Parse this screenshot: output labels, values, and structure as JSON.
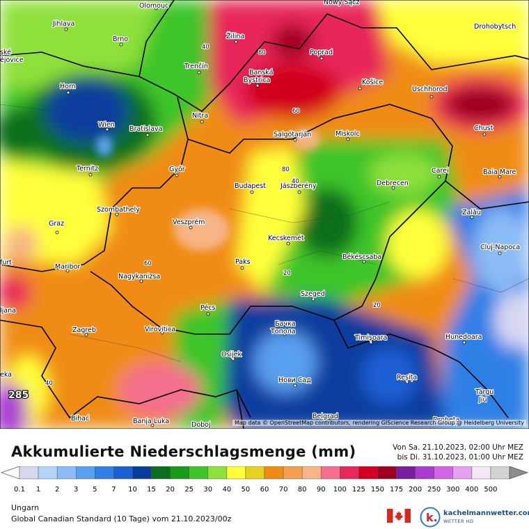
{
  "header": {
    "title": "Akkumulierte Niederschlagsmenge (mm)",
    "period_from": "Von Sa. 21.10.2023, 02:00 Uhr MEZ",
    "period_to": "bis Di. 31.10.2023, 01:00 Uhr MEZ"
  },
  "footer": {
    "region": "Ungarn",
    "model": "Global Canadian Standard (10 Tage) vom  21.10.2023/00z",
    "brand": "kachelmannwetter.com",
    "brand_sub": "WETTER HD"
  },
  "map": {
    "attribution": "Map data © OpenStreetMap contributors, rendering GIScience Research Group @ Heidelberg University",
    "cities": [
      {
        "name": "Olomouc"
      },
      {
        "name": "Nowy Sącz"
      },
      {
        "name": "Jihlava"
      },
      {
        "name": "Drohobytsch"
      },
      {
        "name": "Brno"
      },
      {
        "name": "Žilina"
      },
      {
        "name": "Poprad"
      },
      {
        "name": "ské"
      },
      {
        "name": "ějovice"
      },
      {
        "name": "Trenčín"
      },
      {
        "name": "Banská"
      },
      {
        "name": "Bystrica"
      },
      {
        "name": "Košice"
      },
      {
        "name": "Uschhorod"
      },
      {
        "name": "Horn"
      },
      {
        "name": "Nitra"
      },
      {
        "name": "Wien"
      },
      {
        "name": "Bratislava"
      },
      {
        "name": "Salgótarján"
      },
      {
        "name": "Miskolc"
      },
      {
        "name": "Chust"
      },
      {
        "name": "Ternitz"
      },
      {
        "name": "Győr"
      },
      {
        "name": "Carei"
      },
      {
        "name": "Baia Mare"
      },
      {
        "name": "Budapest"
      },
      {
        "name": "Jászberény"
      },
      {
        "name": "Debrecen"
      },
      {
        "name": "Szombathely"
      },
      {
        "name": "Zalău"
      },
      {
        "name": "Graz"
      },
      {
        "name": "Veszprém"
      },
      {
        "name": "Kecskemét"
      },
      {
        "name": "Cluj-Napoca"
      },
      {
        "name": "furt"
      },
      {
        "name": "Békéscsaba"
      },
      {
        "name": "Maribor"
      },
      {
        "name": "Paks"
      },
      {
        "name": "Nagykanizsa"
      },
      {
        "name": "Szeged"
      },
      {
        "name": "ljana"
      },
      {
        "name": "Pécs"
      },
      {
        "name": "Бачка"
      },
      {
        "name": "Топола"
      },
      {
        "name": "Zagreb"
      },
      {
        "name": "Virovitica"
      },
      {
        "name": "Timișoara"
      },
      {
        "name": "Hunedoara"
      },
      {
        "name": "Osijek"
      },
      {
        "name": "eka"
      },
      {
        "name": "Нови Сад"
      },
      {
        "name": "Reșița"
      },
      {
        "name": "Târgu"
      },
      {
        "name": "Jiu"
      },
      {
        "name": "Bihać"
      },
      {
        "name": "Belgrad"
      },
      {
        "name": "Banja Luka"
      },
      {
        "name": "Doboj"
      },
      {
        "name": "Drobeta"
      }
    ],
    "contour_labels": [
      "40",
      "80",
      "60",
      "80",
      "40",
      "60",
      "20",
      "20",
      "40"
    ],
    "max_value_label": "285"
  },
  "legend": {
    "ticks": [
      "0.1",
      "1",
      "2",
      "3",
      "5",
      "7",
      "10",
      "15",
      "20",
      "25",
      "30",
      "40",
      "50",
      "60",
      "70",
      "80",
      "90",
      "100",
      "125",
      "150",
      "175",
      "200",
      "250",
      "300",
      "400",
      "500"
    ],
    "colors": [
      "#d7d7f2",
      "#b3d4f8",
      "#8cbcf6",
      "#5aa0f0",
      "#2f7fe6",
      "#1a5fd4",
      "#0a3c9e",
      "#0a6e1e",
      "#1a9a1a",
      "#3ec52a",
      "#8ee03a",
      "#ffff3a",
      "#e6d21e",
      "#f08c14",
      "#f4a04e",
      "#f6b487",
      "#f56e8c",
      "#e8285a",
      "#d2001e",
      "#a0001e",
      "#7a1ea0",
      "#aa3cd2",
      "#d264e6",
      "#e6a0f0",
      "#f5e6f8",
      "#d2d2d2"
    ]
  }
}
